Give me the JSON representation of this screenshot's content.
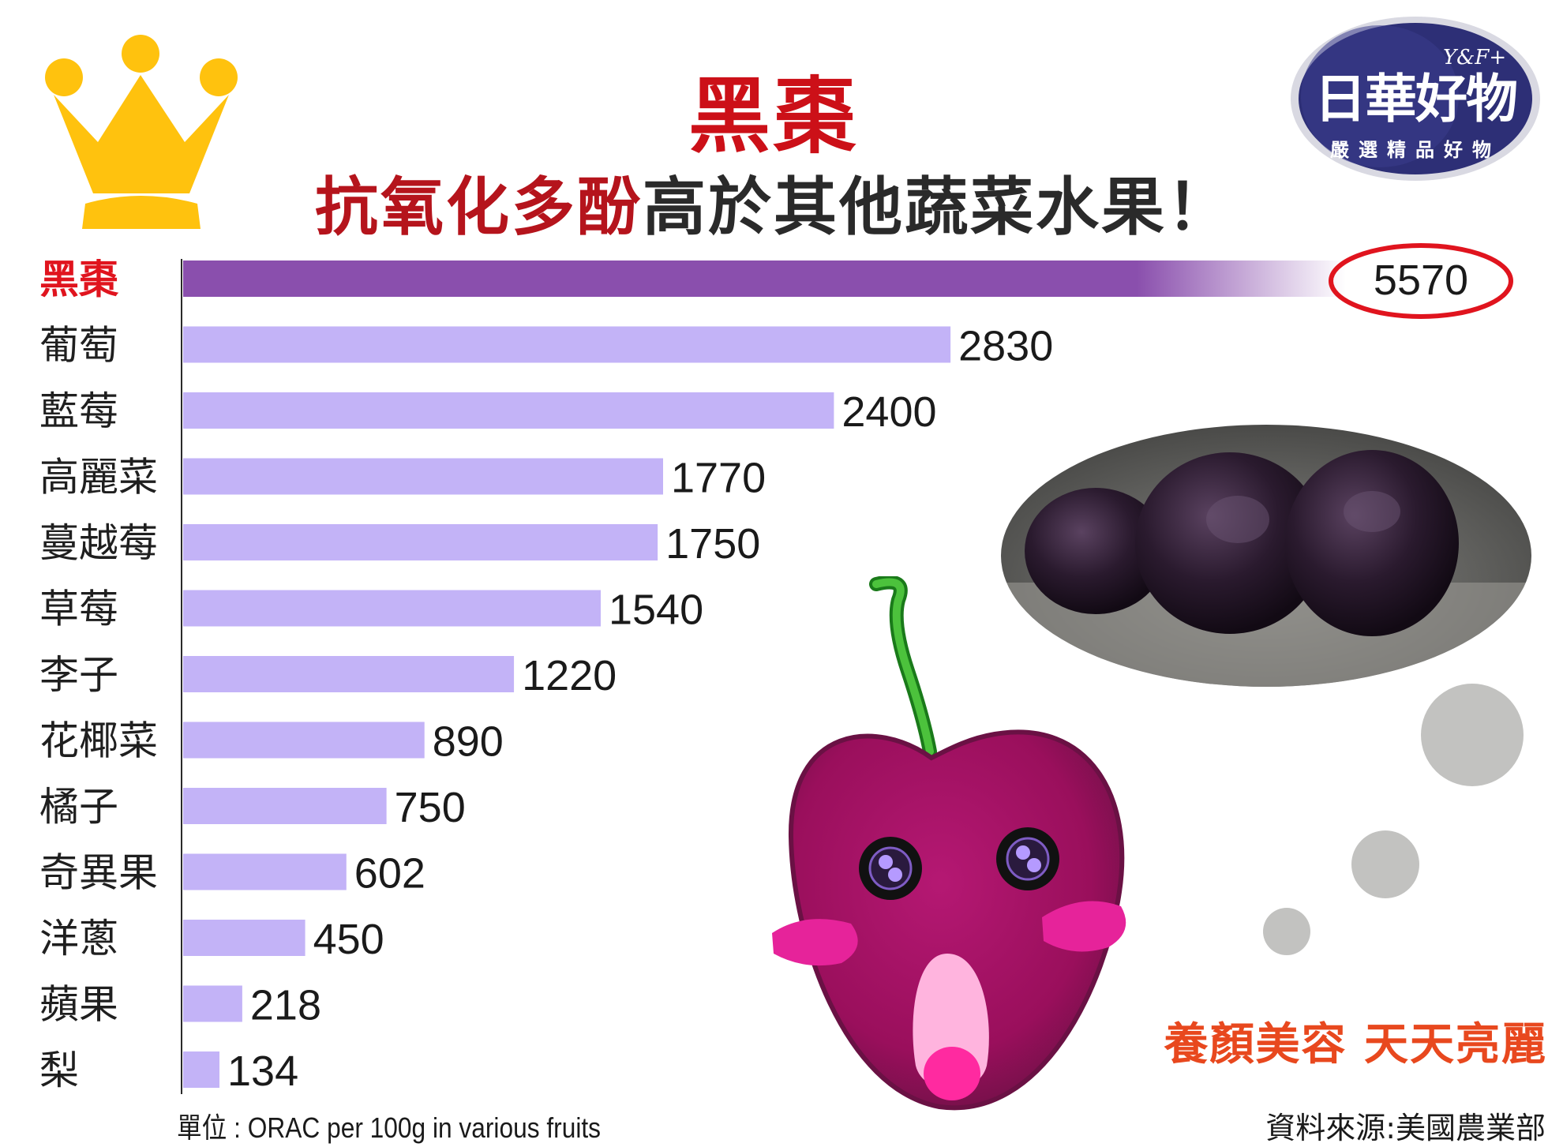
{
  "header": {
    "title": "黑棗",
    "subtitle_highlight": "抗氧化多酚",
    "subtitle_rest": "高於其他蔬菜水果！"
  },
  "logo": {
    "sup": "Y&F+",
    "name": "日華好物",
    "tagline": "嚴選精品好物"
  },
  "chart_data": {
    "type": "bar",
    "orientation": "horizontal",
    "categories": [
      "黑棗",
      "葡萄",
      "藍莓",
      "高麗菜",
      "蔓越莓",
      "草莓",
      "李子",
      "花椰菜",
      "橘子",
      "奇異果",
      "洋蔥",
      "蘋果",
      "梨"
    ],
    "values": [
      5570,
      2830,
      2400,
      1770,
      1750,
      1540,
      1220,
      890,
      750,
      602,
      450,
      218,
      134
    ],
    "highlight_index": 0,
    "colors": {
      "highlight": "#8a4fad",
      "bar": "#c3b3f7",
      "highlight_label": "#e0141e",
      "label": "#1f1f1f",
      "circle": "#e0141e"
    },
    "unit_label": "單位 : ORAC per 100g in various fruits",
    "source": "資料來源:美國農業部"
  },
  "slogan": "養顏美容 天天亮麗",
  "colors": {
    "title": "#cc1018",
    "crown": "#ffc20e",
    "logo_bg": "#2d2f76",
    "cherry": "#9e1060",
    "slogan": "#e8481e"
  }
}
